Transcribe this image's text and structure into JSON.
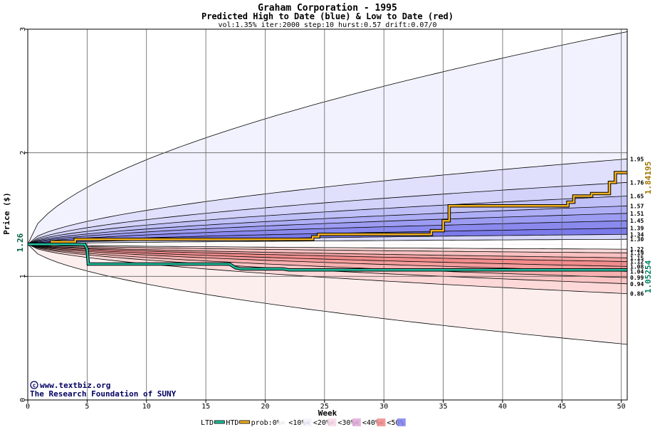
{
  "chart_data": {
    "type": "area",
    "title": "Graham Corporation - 1995",
    "subtitle": "Predicted High to Date (blue) &  Low to Date (red)",
    "params": "vol:1.35% iter:2000 step:10 hurst:0.57 drift:0.07/0",
    "xlabel": "Week",
    "ylabel": "Price ($)",
    "xlim": [
      0,
      50.5
    ],
    "ylim": [
      0,
      3
    ],
    "x_ticks": [
      0,
      5,
      10,
      15,
      20,
      25,
      30,
      35,
      40,
      45,
      50
    ],
    "y_ticks": [
      0,
      1,
      2,
      3
    ],
    "start_price": 1.26,
    "start_price_label": "1.26",
    "htd_final_label": "1.84195",
    "ltd_final_label": "1.05254",
    "right_labels": [
      "1.95",
      "1.76",
      "1.65",
      "1.57",
      "1.51",
      "1.45",
      "1.39",
      "1.34",
      "1.30",
      "1.22",
      "1.19",
      "1.15",
      "1.12",
      "1.08",
      "1.04",
      "0.99",
      "0.94",
      "0.86"
    ],
    "high_bands": [
      {
        "final": 2.98,
        "fill": "#f2f2fe"
      },
      {
        "final": 1.95,
        "fill": "#e0e0fc"
      },
      {
        "final": 1.76,
        "fill": "#d2d2fa"
      },
      {
        "final": 1.65,
        "fill": "#c0c0f8"
      },
      {
        "final": 1.57,
        "fill": "#aeaef6"
      },
      {
        "final": 1.51,
        "fill": "#9c9cf2"
      },
      {
        "final": 1.45,
        "fill": "#8a8aee"
      },
      {
        "final": 1.39,
        "fill": "#7a7aea"
      },
      {
        "final": 1.34,
        "fill": "#d8d8fa"
      },
      {
        "final": 1.3,
        "fill": "#ffffff"
      }
    ],
    "low_bands": [
      {
        "final": 0.45,
        "fill": "#fdeeee"
      },
      {
        "final": 0.86,
        "fill": "#fcd8d8"
      },
      {
        "final": 0.94,
        "fill": "#fac4c4"
      },
      {
        "final": 0.99,
        "fill": "#f8b0b0"
      },
      {
        "final": 1.04,
        "fill": "#f49c9c"
      },
      {
        "final": 1.08,
        "fill": "#f28c8c"
      },
      {
        "final": 1.12,
        "fill": "#f4a4a4"
      },
      {
        "final": 1.15,
        "fill": "#f8c0c0"
      },
      {
        "final": 1.19,
        "fill": "#fbdada"
      },
      {
        "final": 1.22,
        "fill": "#ffffff"
      }
    ],
    "htd_series": {
      "x": [
        0,
        2,
        2,
        4,
        4,
        24,
        24,
        24.5,
        24.5,
        34,
        34,
        35,
        35,
        35.5,
        35.5,
        45.5,
        45.5,
        46,
        46,
        47.5,
        47.5,
        49,
        49,
        49.5,
        49.5,
        50.5
      ],
      "y": [
        1.26,
        1.26,
        1.28,
        1.28,
        1.3,
        1.3,
        1.32,
        1.32,
        1.34,
        1.34,
        1.37,
        1.37,
        1.45,
        1.45,
        1.57,
        1.57,
        1.6,
        1.6,
        1.65,
        1.65,
        1.67,
        1.67,
        1.76,
        1.76,
        1.84,
        1.84
      ]
    },
    "ltd_series": {
      "x": [
        0,
        4.8,
        5,
        5.1,
        17,
        17.5,
        18,
        21.5,
        22,
        50.5
      ],
      "y": [
        1.26,
        1.26,
        1.22,
        1.1,
        1.1,
        1.07,
        1.06,
        1.06,
        1.052,
        1.052
      ]
    },
    "legend": [
      {
        "label": "LTD",
        "kind": "line",
        "color": "#20c0a0"
      },
      {
        "label": "HTD",
        "kind": "line",
        "color": "#f0b020"
      },
      {
        "label": "prob:0%<",
        "kind": "swatch",
        "color": "#ffffff"
      },
      {
        "label": "<10%<",
        "kind": "swatch",
        "color": "#f2f2fe"
      },
      {
        "label": "<20%<",
        "kind": "swatch",
        "color": "#f8d8e8"
      },
      {
        "label": "<30%<",
        "kind": "swatch",
        "color": "#e0a8d8"
      },
      {
        "label": "<40%<",
        "kind": "swatch",
        "color": "#f08888"
      },
      {
        "label": "<50%",
        "kind": "swatch",
        "color": "#8080f0"
      }
    ],
    "grid": true,
    "colors": {
      "htd": "#f0b020",
      "ltd": "#20c0a0",
      "htd_label": "#a07800",
      "ltd_label": "#008060"
    }
  },
  "credits": {
    "site": "www.textbiz.org",
    "org": "The Research Foundation of SUNY"
  }
}
